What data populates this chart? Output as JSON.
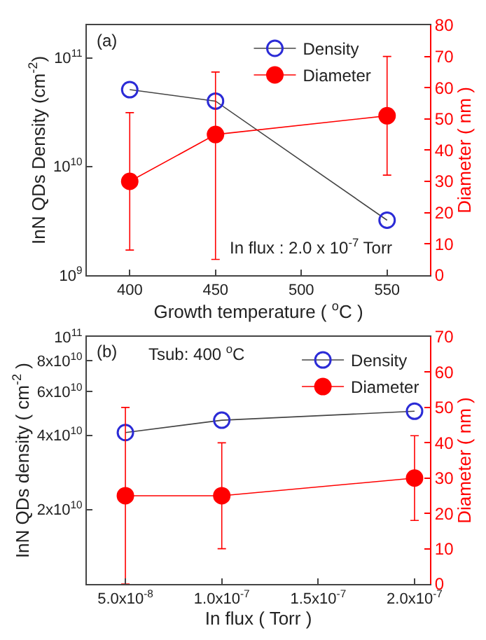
{
  "chart_data": [
    {
      "type": "line",
      "xlabel": "Growth temperature ( $^{o}$C )",
      "ylabel": "InN QDs Density (cm$^{-2}$)",
      "y2label": "Diameter ( nm )",
      "x": [
        400,
        450,
        550
      ],
      "xlim": [
        375,
        575
      ],
      "xticks": [
        400,
        450,
        500,
        550
      ],
      "log": "y",
      "ylim": [
        1000000000.0,
        200000000000.0
      ],
      "yticks": [
        {
          "value": 1000000000.0,
          "label": "10$^{9}$"
        },
        {
          "value": 10000000000.0,
          "label": "10$^{10}$"
        },
        {
          "value": 100000000000.0,
          "label": "10$^{11}$"
        }
      ],
      "y2lim": [
        0,
        80
      ],
      "y2ticks": [
        0,
        10,
        20,
        30,
        40,
        50,
        60,
        70,
        80
      ],
      "series": [
        {
          "name": "Density",
          "color": "#2b2bd6",
          "values": [
            51000000000.0,
            40000000000.0,
            3200000000.0
          ]
        },
        {
          "name": "Diameter",
          "color": "#ff0000",
          "axis": "y2",
          "values": [
            30,
            45,
            51
          ],
          "errors": [
            [
              8,
              52
            ],
            [
              5,
              65
            ],
            [
              32,
              70
            ]
          ]
        }
      ],
      "annotations": [
        "(a)",
        "In flux : 2.0 x 10$^{-7}$ Torr"
      ],
      "legend": "top right",
      "marker": "circle",
      "line_style": "solid"
    },
    {
      "type": "line",
      "xlabel": "In flux ( Torr )",
      "ylabel": "InN QDs density ( cm$^{-2}$ )",
      "y2label": "Diameter ( nm )",
      "x": [
        5e-08,
        1e-07,
        2e-07
      ],
      "xlim": [
        3e-08,
        2.08e-07
      ],
      "xticks": [
        {
          "value": 5e-08,
          "label": "5.0x10$^{-8}$"
        },
        {
          "value": 1e-07,
          "label": "1.0x10$^{-7}$"
        },
        {
          "value": 1.5e-07,
          "label": "1.5x10$^{-7}$"
        },
        {
          "value": 2e-07,
          "label": "2.0x10$^{-7}$"
        }
      ],
      "log": "y",
      "ylim": [
        10000000000.0,
        100000000000.0
      ],
      "yticks": [
        {
          "value": 20000000000.0,
          "label": "2x10$^{10}$"
        },
        {
          "value": 40000000000.0,
          "label": "4x10$^{10}$"
        },
        {
          "value": 60000000000.0,
          "label": "6x10$^{10}$"
        },
        {
          "value": 80000000000.0,
          "label": "8x10$^{10}$"
        },
        {
          "value": 100000000000.0,
          "label": "10$^{11}$"
        }
      ],
      "y2lim": [
        0,
        70
      ],
      "y2ticks": [
        0,
        10,
        20,
        30,
        40,
        50,
        60,
        70
      ],
      "series": [
        {
          "name": "Density",
          "color": "#2b2bd6",
          "values": [
            41000000000.0,
            46000000000.0,
            50000000000.0
          ]
        },
        {
          "name": "Diameter",
          "color": "#ff0000",
          "axis": "y2",
          "values": [
            25,
            25,
            30
          ],
          "errors": [
            [
              0,
              50
            ],
            [
              10,
              40
            ],
            [
              18,
              42
            ]
          ]
        }
      ],
      "annotations": [
        "(b)",
        "Tsub: 400 $^{o}$C"
      ],
      "legend": "top right",
      "marker": "circle",
      "line_style": "solid"
    }
  ]
}
